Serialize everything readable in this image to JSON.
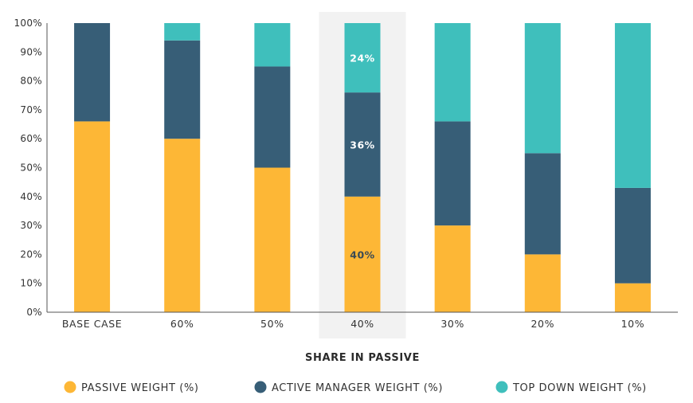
{
  "chart_data": {
    "type": "bar",
    "stacked": true,
    "categories": [
      "BASE CASE",
      "60%",
      "50%",
      "40%",
      "30%",
      "20%",
      "10%"
    ],
    "series": [
      {
        "name": "PASSIVE WEIGHT (%)",
        "color": "#FDB736",
        "values": [
          66,
          60,
          50,
          40,
          30,
          20,
          10
        ]
      },
      {
        "name": "ACTIVE MANAGER WEIGHT (%)",
        "color": "#375E77",
        "values": [
          34,
          34,
          35,
          36,
          36,
          35,
          33
        ]
      },
      {
        "name": "TOP DOWN WEIGHT (%)",
        "color": "#3FBFBC",
        "values": [
          0,
          6,
          15,
          24,
          34,
          45,
          57
        ]
      }
    ],
    "xlabel": "SHARE IN PASSIVE",
    "ylabel": "",
    "ylim": [
      0,
      100
    ],
    "y_ticks": [
      "0%",
      "10%",
      "20%",
      "30%",
      "40%",
      "50%",
      "60%",
      "70%",
      "80%",
      "90%",
      "100%"
    ],
    "highlight_category": "40%",
    "highlight_color": "#F2F2F2",
    "data_labels": [
      {
        "category": "40%",
        "series": "TOP DOWN WEIGHT (%)",
        "text": "24%",
        "color": "#FFFFFF"
      },
      {
        "category": "40%",
        "series": "ACTIVE MANAGER WEIGHT (%)",
        "text": "36%",
        "color": "#FFFFFF"
      },
      {
        "category": "40%",
        "series": "PASSIVE WEIGHT (%)",
        "text": "40%",
        "color": "#3A4A55"
      }
    ],
    "legend_position": "bottom",
    "grid": false
  }
}
